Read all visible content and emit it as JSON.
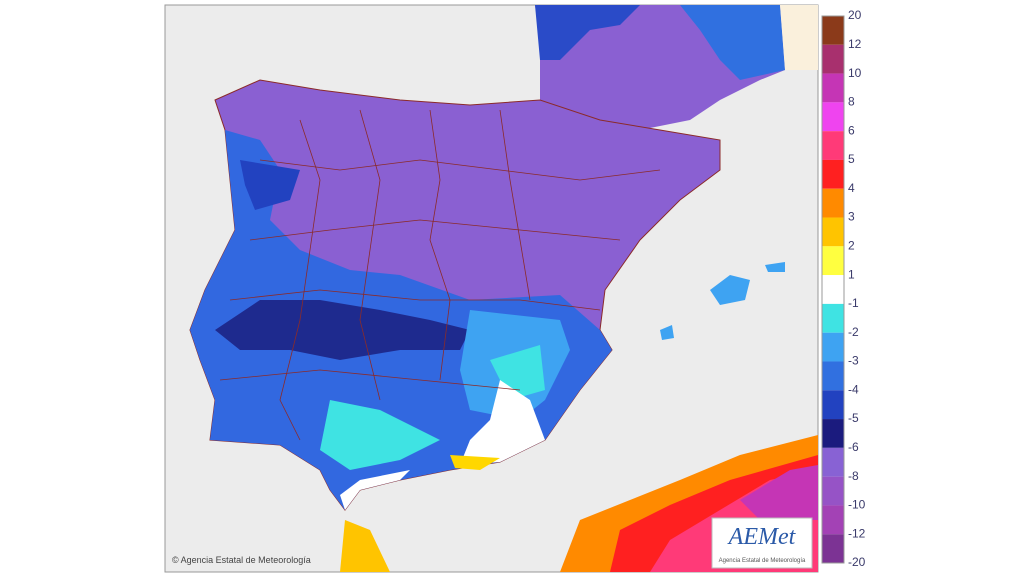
{
  "map": {
    "copyright": "© Agencia Estatal de Meteorología",
    "logo": {
      "name": "AEMet",
      "subtitle": "Agencia Estatal de Meteorología"
    },
    "legend": {
      "labels": [
        "20",
        "12",
        "10",
        "8",
        "6",
        "5",
        "4",
        "3",
        "2",
        "1",
        "-1",
        "-2",
        "-3",
        "-4",
        "-5",
        "-6",
        "-8",
        "-10",
        "-12",
        "-20"
      ],
      "colors": [
        "#8b3a1a",
        "#a8306e",
        "#c535b5",
        "#ef44ef",
        "#ff3a78",
        "#ff2020",
        "#ff8a00",
        "#ffc400",
        "#ffff40",
        "#ffffff",
        "#3fe3e3",
        "#3ea3f2",
        "#3170e0",
        "#2242c0",
        "#1b1b7e",
        "#8862d4",
        "#9653c6",
        "#a342b5",
        "#7c3394"
      ]
    }
  }
}
